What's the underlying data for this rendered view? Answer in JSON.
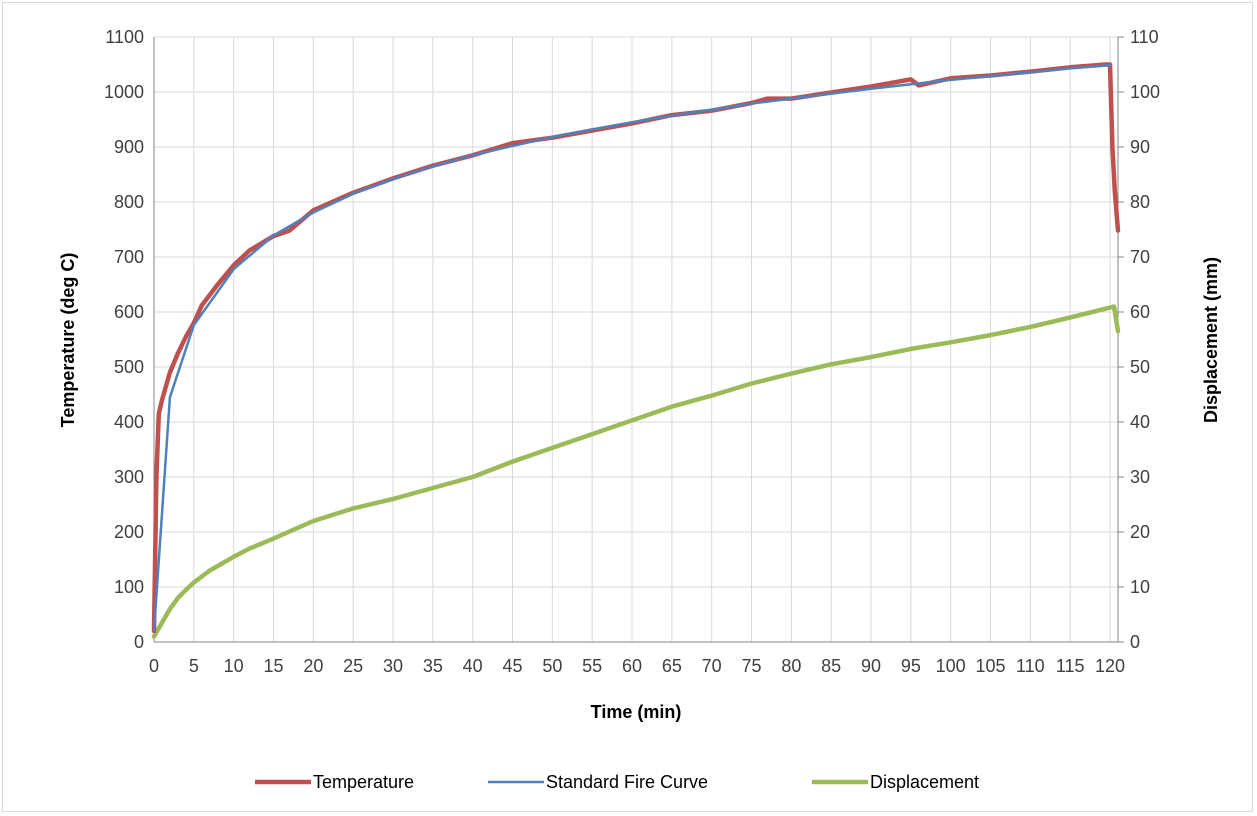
{
  "chart_data": {
    "type": "line",
    "title": "",
    "xlabel": "Time (min)",
    "ylabel": "Temperature (deg C)",
    "y2label": "Displacement (mm)",
    "xlim": [
      0,
      121
    ],
    "ylim": [
      0,
      1100
    ],
    "y2lim": [
      0,
      110
    ],
    "x_ticks": [
      0,
      5,
      10,
      15,
      20,
      25,
      30,
      35,
      40,
      45,
      50,
      55,
      60,
      65,
      70,
      75,
      80,
      85,
      90,
      95,
      100,
      105,
      110,
      115,
      120
    ],
    "y_ticks": [
      0,
      100,
      200,
      300,
      400,
      500,
      600,
      700,
      800,
      900,
      1000,
      1100
    ],
    "y2_ticks": [
      0,
      10,
      20,
      30,
      40,
      50,
      60,
      70,
      80,
      90,
      100,
      110
    ],
    "grid": true,
    "legend_position": "bottom",
    "series": [
      {
        "name": "Temperature",
        "axis": "left",
        "color": "#c0504d",
        "x": [
          0,
          0.3,
          0.6,
          1,
          2,
          3,
          4,
          5,
          6,
          8,
          10,
          12,
          15,
          17,
          20,
          25,
          30,
          35,
          40,
          45,
          50,
          55,
          60,
          65,
          70,
          75,
          77,
          80,
          85,
          90,
          95,
          96,
          100,
          105,
          110,
          115,
          119.5,
          120,
          120.3,
          120.6,
          121
        ],
        "y": [
          20,
          300,
          415,
          440,
          490,
          525,
          555,
          580,
          612,
          650,
          685,
          712,
          738,
          748,
          785,
          817,
          843,
          866,
          885,
          907,
          917,
          930,
          943,
          958,
          966,
          980,
          988,
          988,
          999,
          1010,
          1023,
          1012,
          1025,
          1030,
          1037,
          1045,
          1050,
          1050,
          900,
          820,
          748
        ]
      },
      {
        "name": "Standard Fire Curve",
        "axis": "left",
        "color": "#4f81bd",
        "x": [
          0,
          2,
          5,
          10,
          15,
          20,
          25,
          30,
          35,
          40,
          45,
          50,
          55,
          60,
          65,
          70,
          75,
          80,
          85,
          90,
          95,
          100,
          105,
          110,
          115,
          120
        ],
        "y": [
          20,
          445,
          576,
          678,
          739,
          781,
          815,
          842,
          865,
          885,
          902,
          918,
          932,
          945,
          957,
          968,
          979,
          988,
          997,
          1006,
          1014,
          1022,
          1029,
          1036,
          1043,
          1049
        ]
      },
      {
        "name": "Displacement",
        "axis": "right",
        "color": "#9bbb59",
        "x": [
          0,
          1,
          2,
          3,
          4,
          5,
          7,
          10,
          12,
          15,
          20,
          25,
          30,
          35,
          40,
          45,
          50,
          55,
          60,
          65,
          70,
          75,
          80,
          85,
          90,
          95,
          100,
          105,
          110,
          115,
          120,
          120.5,
          121
        ],
        "y": [
          1,
          3.5,
          6,
          8,
          9.5,
          10.8,
          13,
          15.5,
          17,
          18.8,
          22,
          24.3,
          26,
          28,
          30,
          32.8,
          35.3,
          37.8,
          40.3,
          42.8,
          44.8,
          47,
          48.8,
          50.5,
          51.8,
          53.3,
          54.5,
          55.8,
          57.3,
          59,
          60.8,
          61,
          56.5
        ]
      }
    ]
  }
}
